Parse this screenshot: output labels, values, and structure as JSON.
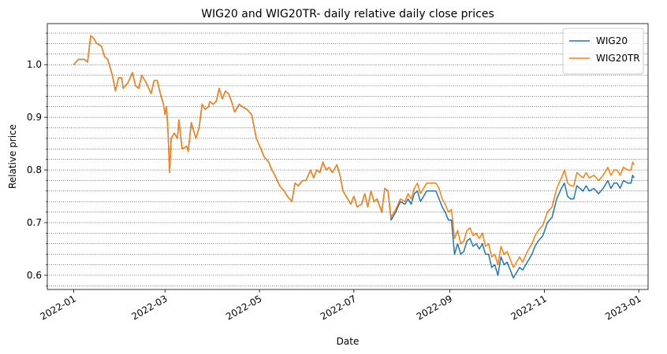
{
  "chart_data": {
    "type": "line",
    "title": "WIG20 and WIG20TR- daily relative daily close prices",
    "xlabel": "Date",
    "ylabel": "Relative price",
    "x": [
      0,
      3,
      7,
      9,
      11,
      13,
      15,
      18,
      20,
      22,
      25,
      27,
      29,
      31,
      32,
      35,
      38,
      40,
      42,
      44,
      47,
      50,
      52,
      54,
      56,
      58,
      59,
      60,
      61,
      62,
      63,
      65,
      67,
      68,
      70,
      73,
      74,
      76,
      79,
      81,
      83,
      85,
      87,
      88,
      90,
      92,
      94,
      96,
      98,
      100,
      102,
      104,
      107,
      109,
      112,
      115,
      118,
      121,
      123,
      126,
      128,
      130,
      133,
      136,
      138,
      141,
      143,
      145,
      148,
      150,
      153,
      155,
      157,
      159,
      161,
      163,
      165,
      167,
      170,
      172,
      174,
      177,
      179,
      181,
      183,
      186,
      188,
      190,
      192,
      194,
      196,
      199,
      201,
      203,
      205,
      208,
      211,
      214,
      216,
      218,
      220,
      222,
      224,
      226,
      228,
      231,
      234,
      236,
      238,
      240,
      242,
      244,
      246,
      248,
      250,
      252,
      254,
      256,
      258,
      260,
      262,
      264,
      266,
      268,
      270,
      272,
      274,
      276,
      278,
      280,
      282,
      284,
      286,
      288,
      290,
      293,
      296,
      298,
      300,
      303,
      306,
      309,
      312,
      315,
      317,
      319,
      321,
      323,
      325,
      327,
      329,
      331,
      333,
      336,
      339,
      342,
      345,
      347,
      349,
      351,
      353,
      355,
      358,
      360,
      361,
      362
    ],
    "series": [
      {
        "name": "WIG20",
        "color": "#1f77b4",
        "values": [
          1.0,
          1.01,
          1.01,
          1.005,
          1.055,
          1.05,
          1.04,
          1.035,
          1.015,
          1.01,
          0.98,
          0.95,
          0.975,
          0.975,
          0.955,
          0.965,
          0.985,
          0.96,
          0.955,
          0.98,
          0.965,
          0.945,
          0.97,
          0.97,
          0.945,
          0.925,
          0.905,
          0.92,
          0.87,
          0.795,
          0.86,
          0.87,
          0.86,
          0.895,
          0.84,
          0.845,
          0.835,
          0.89,
          0.86,
          0.88,
          0.925,
          0.915,
          0.92,
          0.93,
          0.925,
          0.93,
          0.955,
          0.935,
          0.95,
          0.945,
          0.93,
          0.91,
          0.925,
          0.92,
          0.915,
          0.905,
          0.86,
          0.84,
          0.825,
          0.815,
          0.8,
          0.79,
          0.77,
          0.76,
          0.75,
          0.74,
          0.775,
          0.77,
          0.78,
          0.78,
          0.8,
          0.785,
          0.8,
          0.795,
          0.815,
          0.8,
          0.805,
          0.795,
          0.81,
          0.79,
          0.76,
          0.745,
          0.735,
          0.75,
          0.73,
          0.735,
          0.755,
          0.73,
          0.76,
          0.74,
          0.745,
          0.72,
          0.765,
          0.76,
          0.705,
          0.72,
          0.74,
          0.735,
          0.745,
          0.735,
          0.755,
          0.76,
          0.74,
          0.75,
          0.76,
          0.76,
          0.76,
          0.745,
          0.73,
          0.72,
          0.705,
          0.705,
          0.64,
          0.66,
          0.64,
          0.645,
          0.665,
          0.67,
          0.655,
          0.66,
          0.65,
          0.66,
          0.64,
          0.64,
          0.615,
          0.62,
          0.6,
          0.635,
          0.62,
          0.625,
          0.61,
          0.595,
          0.605,
          0.615,
          0.61,
          0.625,
          0.64,
          0.655,
          0.665,
          0.675,
          0.7,
          0.71,
          0.745,
          0.765,
          0.775,
          0.75,
          0.745,
          0.745,
          0.77,
          0.765,
          0.76,
          0.77,
          0.76,
          0.765,
          0.755,
          0.765,
          0.78,
          0.765,
          0.775,
          0.775,
          0.765,
          0.78,
          0.775,
          0.775,
          0.79,
          0.785
        ]
      },
      {
        "name": "WIG20TR",
        "color": "#ff7f0e",
        "values": [
          1.0,
          1.01,
          1.01,
          1.005,
          1.055,
          1.05,
          1.04,
          1.035,
          1.015,
          1.01,
          0.98,
          0.95,
          0.975,
          0.975,
          0.955,
          0.965,
          0.985,
          0.96,
          0.955,
          0.98,
          0.965,
          0.945,
          0.97,
          0.97,
          0.945,
          0.925,
          0.905,
          0.92,
          0.87,
          0.795,
          0.86,
          0.87,
          0.86,
          0.895,
          0.84,
          0.845,
          0.835,
          0.89,
          0.86,
          0.88,
          0.925,
          0.915,
          0.92,
          0.93,
          0.925,
          0.93,
          0.955,
          0.935,
          0.95,
          0.945,
          0.93,
          0.91,
          0.925,
          0.92,
          0.915,
          0.905,
          0.86,
          0.84,
          0.825,
          0.815,
          0.8,
          0.79,
          0.77,
          0.76,
          0.75,
          0.74,
          0.775,
          0.77,
          0.78,
          0.78,
          0.8,
          0.785,
          0.8,
          0.795,
          0.815,
          0.8,
          0.805,
          0.795,
          0.81,
          0.79,
          0.76,
          0.745,
          0.735,
          0.75,
          0.73,
          0.735,
          0.755,
          0.73,
          0.76,
          0.74,
          0.745,
          0.72,
          0.765,
          0.76,
          0.71,
          0.725,
          0.745,
          0.74,
          0.755,
          0.745,
          0.765,
          0.775,
          0.755,
          0.765,
          0.775,
          0.775,
          0.775,
          0.765,
          0.745,
          0.735,
          0.72,
          0.725,
          0.67,
          0.685,
          0.66,
          0.665,
          0.685,
          0.69,
          0.675,
          0.68,
          0.67,
          0.68,
          0.655,
          0.66,
          0.635,
          0.64,
          0.62,
          0.655,
          0.64,
          0.645,
          0.63,
          0.615,
          0.625,
          0.635,
          0.625,
          0.645,
          0.66,
          0.675,
          0.685,
          0.695,
          0.72,
          0.73,
          0.765,
          0.785,
          0.8,
          0.775,
          0.77,
          0.77,
          0.795,
          0.79,
          0.785,
          0.795,
          0.785,
          0.79,
          0.78,
          0.79,
          0.805,
          0.79,
          0.8,
          0.8,
          0.79,
          0.805,
          0.8,
          0.8,
          0.815,
          0.81
        ]
      }
    ],
    "xlim": [
      -17,
      371
    ],
    "xticks": [
      {
        "value": 0,
        "label": "2022-01"
      },
      {
        "value": 59,
        "label": "2022-03"
      },
      {
        "value": 120,
        "label": "2022-05"
      },
      {
        "value": 181,
        "label": "2022-07"
      },
      {
        "value": 243,
        "label": "2022-09"
      },
      {
        "value": 304,
        "label": "2022-11"
      },
      {
        "value": 365,
        "label": "2023-01"
      }
    ],
    "ylim": [
      0.573,
      1.078
    ],
    "yticks": [
      0.6,
      0.7,
      0.8,
      0.9,
      {
        "value": 1,
        "label": "1.0"
      }
    ],
    "yminorticks": [
      0.58,
      0.62,
      0.64,
      0.66,
      0.68,
      0.72,
      0.74,
      0.76,
      0.78,
      0.82,
      0.84,
      0.86,
      0.88,
      0.92,
      0.94,
      0.96,
      0.98,
      1.02,
      1.04,
      1.06
    ],
    "grid": true,
    "legend": "upper right"
  }
}
